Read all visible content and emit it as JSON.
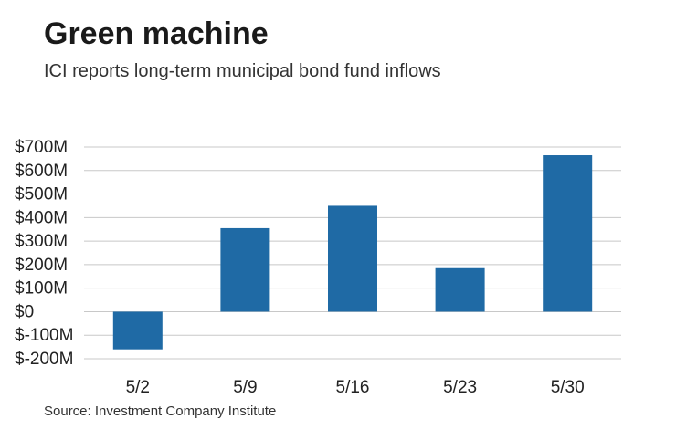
{
  "title": "Green machine",
  "subtitle": "ICI reports long-term municipal bond fund inflows",
  "source": "Source: Investment Company Institute",
  "colors": {
    "bar": "#1f6aa5",
    "grid": "#c8c8c8"
  },
  "chart_data": {
    "type": "bar",
    "categories": [
      "5/2",
      "5/9",
      "5/16",
      "5/23",
      "5/30"
    ],
    "values": [
      -160,
      355,
      450,
      185,
      665
    ],
    "ylim": [
      -200,
      700
    ],
    "yticks": [
      700,
      600,
      500,
      400,
      300,
      200,
      100,
      0,
      -100,
      -200
    ],
    "ytick_labels": [
      "$700M",
      "$600M",
      "$500M",
      "$400M",
      "$300M",
      "$200M",
      "$100M",
      "$0",
      "$-100M",
      "$-200M"
    ],
    "grid": true,
    "xlabel": "",
    "ylabel": ""
  }
}
